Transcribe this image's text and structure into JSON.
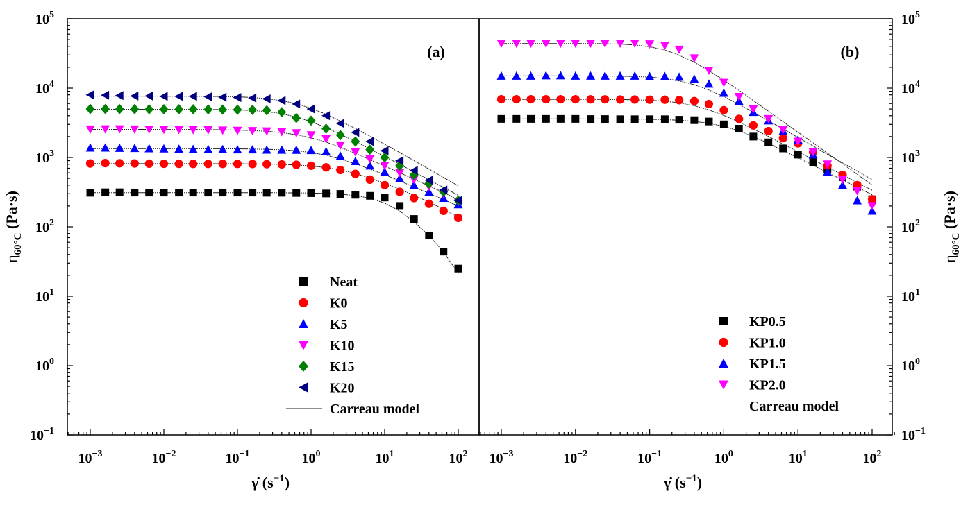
{
  "chart_data": [
    {
      "type": "scatter",
      "panel_label": "(a)",
      "x_scale": "log",
      "y_scale": "log",
      "xlim": [
        0.0005,
        200
      ],
      "ylim": [
        0.1,
        100000
      ],
      "xticks": [
        "10^-3",
        "10^-2",
        "10^-1",
        "10^0",
        "10^1",
        "10^2"
      ],
      "yticks": [
        "10^-1",
        "10^0",
        "10^1",
        "10^2",
        "10^3",
        "10^4",
        "10^5"
      ],
      "xlabel": "γ̇ (s^-1)",
      "ylabel": "η_60°C (Pa·s)",
      "legend_position": "lower-center",
      "x": [
        0.001,
        0.0016,
        0.0025,
        0.004,
        0.0063,
        0.01,
        0.016,
        0.025,
        0.04,
        0.063,
        0.1,
        0.16,
        0.25,
        0.4,
        0.63,
        1,
        1.6,
        2.5,
        4,
        6.3,
        10,
        16,
        25,
        40,
        63,
        100
      ],
      "series": [
        {
          "name": "Neat",
          "marker": "square",
          "color": "#000000",
          "values": [
            310,
            315,
            315,
            312,
            312,
            312,
            312,
            312,
            312,
            312,
            312,
            312,
            310,
            310,
            308,
            306,
            303,
            298,
            290,
            280,
            265,
            200,
            130,
            75,
            44,
            25
          ]
        },
        {
          "name": "K0",
          "marker": "circle",
          "color": "#ff0000",
          "values": [
            820,
            830,
            825,
            820,
            815,
            812,
            810,
            808,
            808,
            808,
            808,
            805,
            800,
            795,
            785,
            760,
            720,
            660,
            580,
            480,
            400,
            320,
            260,
            215,
            170,
            135
          ]
        },
        {
          "name": "K5",
          "marker": "triangle-up",
          "color": "#0000ff",
          "values": [
            1380,
            1380,
            1370,
            1360,
            1350,
            1340,
            1330,
            1320,
            1310,
            1310,
            1300,
            1300,
            1290,
            1285,
            1280,
            1270,
            1220,
            1050,
            880,
            760,
            620,
            500,
            400,
            320,
            260,
            210
          ]
        },
        {
          "name": "K10",
          "marker": "triangle-down",
          "color": "#ff00ff",
          "values": [
            2550,
            2560,
            2560,
            2550,
            2540,
            2530,
            2520,
            2500,
            2480,
            2460,
            2440,
            2420,
            2390,
            2340,
            2250,
            2100,
            1850,
            1500,
            1200,
            950,
            760,
            600,
            480,
            380,
            300,
            230
          ]
        },
        {
          "name": "K15",
          "marker": "diamond",
          "color": "#008000",
          "values": [
            5000,
            5000,
            4980,
            4980,
            4950,
            4950,
            4950,
            4950,
            4920,
            4900,
            4880,
            4850,
            4780,
            4500,
            3700,
            3400,
            2600,
            2100,
            1700,
            1300,
            1000,
            760,
            560,
            420,
            320,
            240
          ]
        },
        {
          "name": "K20",
          "marker": "triangle-left",
          "color": "#000080",
          "values": [
            8000,
            7900,
            7800,
            7700,
            7700,
            7600,
            7600,
            7600,
            7500,
            7400,
            7300,
            7200,
            7000,
            6600,
            5900,
            5000,
            4000,
            3100,
            2300,
            1700,
            1250,
            900,
            650,
            470,
            340,
            240
          ]
        }
      ],
      "fit_curves": [
        {
          "of": "Neat",
          "values": [
            311,
            311,
            311,
            311,
            311,
            311,
            311,
            311,
            311,
            311,
            311,
            311,
            311,
            310,
            309,
            307,
            303,
            296,
            283,
            258,
            220,
            170,
            118,
            75,
            44,
            21
          ]
        },
        {
          "of": "K0",
          "values": [
            815,
            815,
            815,
            815,
            815,
            815,
            815,
            814,
            814,
            813,
            811,
            808,
            803,
            795,
            780,
            755,
            715,
            660,
            590,
            505,
            425,
            350,
            285,
            228,
            180,
            138
          ]
        },
        {
          "of": "K5",
          "values": [
            1340,
            1340,
            1340,
            1340,
            1340,
            1340,
            1340,
            1339,
            1338,
            1336,
            1332,
            1325,
            1312,
            1290,
            1250,
            1180,
            1080,
            950,
            810,
            680,
            565,
            460,
            375,
            305,
            248,
            200
          ]
        },
        {
          "of": "K10",
          "values": [
            2540,
            2540,
            2540,
            2540,
            2540,
            2538,
            2535,
            2530,
            2522,
            2508,
            2485,
            2445,
            2380,
            2280,
            2130,
            1920,
            1670,
            1400,
            1150,
            930,
            750,
            605,
            485,
            390,
            312,
            248
          ]
        },
        {
          "of": "K15",
          "values": [
            4950,
            4950,
            4950,
            4950,
            4950,
            4948,
            4945,
            4938,
            4925,
            4900,
            4850,
            4760,
            4580,
            4280,
            3830,
            3280,
            2700,
            2160,
            1700,
            1330,
            1030,
            800,
            620,
            480,
            370,
            285
          ]
        },
        {
          "of": "K20",
          "values": [
            7650,
            7650,
            7650,
            7650,
            7648,
            7645,
            7640,
            7628,
            7605,
            7560,
            7480,
            7320,
            7050,
            6600,
            5950,
            5100,
            4200,
            3350,
            2620,
            2020,
            1550,
            1180,
            900,
            680,
            515,
            390
          ]
        }
      ],
      "legend": [
        "Neat",
        "K0",
        "K5",
        "K10",
        "K15",
        "K20",
        "Carreau model"
      ]
    },
    {
      "type": "scatter",
      "panel_label": "(b)",
      "x_scale": "log",
      "y_scale": "log",
      "xlim": [
        0.0005,
        200
      ],
      "ylim": [
        0.1,
        100000
      ],
      "xticks": [
        "10^-3",
        "10^-2",
        "10^-1",
        "10^0",
        "10^1",
        "10^2"
      ],
      "yticks": [
        "10^-1",
        "10^0",
        "10^1",
        "10^2",
        "10^3",
        "10^4",
        "10^5"
      ],
      "xlabel": "γ̇ (s^-1)",
      "ylabel": "η_60°C (Pa·s)",
      "legend_position": "lower-right",
      "x": [
        0.001,
        0.0016,
        0.0025,
        0.004,
        0.0063,
        0.01,
        0.016,
        0.025,
        0.04,
        0.063,
        0.1,
        0.16,
        0.25,
        0.4,
        0.63,
        1,
        1.6,
        2.5,
        4,
        6.3,
        10,
        16,
        25,
        40,
        63,
        100
      ],
      "series": [
        {
          "name": "KP0.5",
          "marker": "square",
          "color": "#000000",
          "values": [
            3600,
            3600,
            3600,
            3600,
            3600,
            3600,
            3580,
            3580,
            3560,
            3560,
            3560,
            3560,
            3500,
            3450,
            3300,
            3000,
            2600,
            2000,
            1650,
            1350,
            1100,
            860,
            680,
            520,
            380,
            250
          ]
        },
        {
          "name": "KP1.0",
          "marker": "circle",
          "color": "#ff0000",
          "values": [
            6900,
            6900,
            6900,
            6900,
            6900,
            6900,
            6880,
            6880,
            6850,
            6850,
            6800,
            6800,
            6700,
            6500,
            5900,
            4800,
            3600,
            2900,
            2400,
            1900,
            1600,
            1200,
            760,
            560,
            400,
            250
          ]
        },
        {
          "name": "KP1.5",
          "marker": "triangle-up",
          "color": "#0000ff",
          "values": [
            15000,
            15000,
            15000,
            15200,
            15200,
            15000,
            15000,
            15000,
            15000,
            15000,
            14800,
            14800,
            14500,
            13500,
            11500,
            8500,
            6500,
            4500,
            3400,
            2400,
            1800,
            1100,
            620,
            400,
            240,
            170
          ]
        },
        {
          "name": "KP2.0",
          "marker": "triangle-down",
          "color": "#ff00ff",
          "values": [
            44000,
            44000,
            44000,
            44000,
            44000,
            44000,
            44000,
            44000,
            44000,
            44000,
            43000,
            41000,
            36000,
            27000,
            18000,
            12000,
            7500,
            5000,
            3600,
            2500,
            1700,
            1200,
            800,
            480,
            330,
            200
          ]
        }
      ],
      "fit_curves": [
        {
          "of": "KP0.5",
          "values": [
            3600,
            3600,
            3600,
            3600,
            3600,
            3599,
            3597,
            3594,
            3588,
            3577,
            3556,
            3516,
            3445,
            3320,
            3115,
            2810,
            2420,
            1995,
            1600,
            1260,
            990,
            775,
            605,
            475,
            372,
            290
          ]
        },
        {
          "of": "KP1.0",
          "values": [
            6900,
            6900,
            6900,
            6900,
            6899,
            6896,
            6890,
            6876,
            6847,
            6790,
            6680,
            6480,
            6130,
            5580,
            4850,
            4040,
            3260,
            2570,
            2010,
            1560,
            1210,
            935,
            725,
            562,
            435,
            337
          ]
        },
        {
          "of": "KP1.5",
          "values": [
            15000,
            15000,
            15000,
            14999,
            14997,
            14992,
            14978,
            14945,
            14870,
            14710,
            14380,
            13760,
            12720,
            11200,
            9380,
            7530,
            5860,
            4480,
            3400,
            2570,
            1940,
            1470,
            1110,
            840,
            636,
            481
          ]
        },
        {
          "of": "KP2.0",
          "values": [
            44000,
            44000,
            43998,
            43994,
            43980,
            43945,
            43850,
            43620,
            43070,
            41850,
            39470,
            35410,
            29800,
            23600,
            17800,
            13000,
            9300,
            6600,
            4650,
            3280,
            2310,
            1630,
            1150,
            810,
            570,
            402
          ]
        }
      ],
      "legend": [
        "KP0.5",
        "KP1.0",
        "KP1.5",
        "KP2.0",
        "Carreau model"
      ]
    }
  ]
}
